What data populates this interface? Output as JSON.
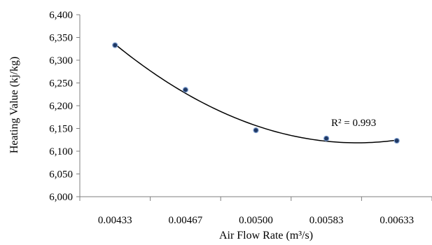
{
  "chart_data": {
    "type": "scatter",
    "title": "",
    "xlabel": "Air Flow Rate (m³/s)",
    "ylabel": "Heating Value (kj/kg)",
    "categories": [
      "0.00433",
      "0.00467",
      "0.00500",
      "0.00583",
      "0.00633"
    ],
    "y_ticks": [
      "6,000",
      "6,050",
      "6,100",
      "6,150",
      "6,200",
      "6,250",
      "6,300",
      "6,350",
      "6,400"
    ],
    "ylim": [
      6000,
      6400
    ],
    "grid": false,
    "legend": "none",
    "series": [
      {
        "values": [
          6333,
          6235,
          6146,
          6128,
          6123
        ],
        "marker_color": "#1f3864",
        "trendline": {
          "type": "polynomial",
          "order": 2,
          "color": "#000000",
          "r_squared_label": "R² = 0.993"
        }
      }
    ]
  }
}
